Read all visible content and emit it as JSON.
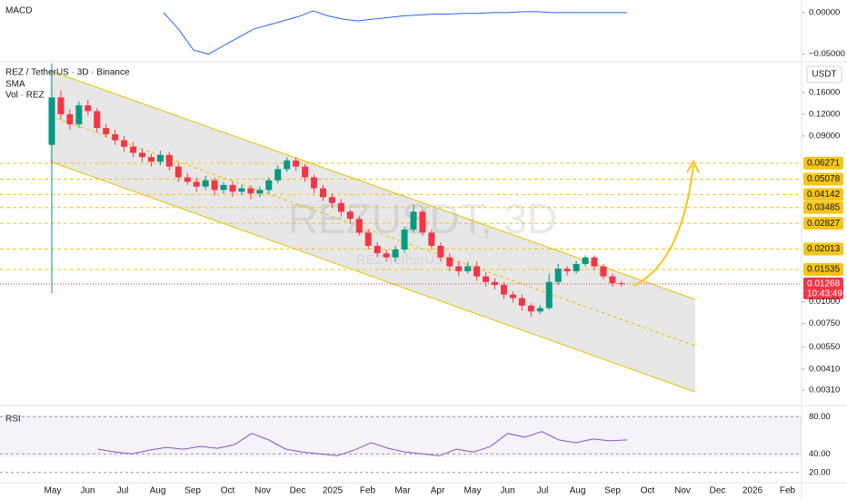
{
  "header": {
    "symbol": "REZ / TetherUS · 3D · Binance",
    "sma": "SMA",
    "volume": "Vol · REZ",
    "currency": "USDT",
    "watermark": "REZUSDT, 3D",
    "watermark_sub": "REZ TetherUS"
  },
  "chart_data": [
    {
      "type": "candlestick",
      "name": "REZ / TetherUS",
      "log_scale": true,
      "ylim": [
        0.00256,
        0.235
      ],
      "yticks": [
        {
          "value": 0.16,
          "label": "0.16000"
        },
        {
          "value": 0.12,
          "label": "0.12000"
        },
        {
          "value": 0.09,
          "label": "0.09000"
        },
        {
          "value": 0.01,
          "label": "0.01000"
        },
        {
          "value": 0.0075,
          "label": "0.00750"
        },
        {
          "value": 0.0055,
          "label": "0.00550"
        },
        {
          "value": 0.0041,
          "label": "0.00410"
        },
        {
          "value": 0.0031,
          "label": "0.00310"
        }
      ],
      "levels": [
        0.06271,
        0.05078,
        0.04142,
        0.03485,
        0.02827,
        0.02013,
        0.01535
      ],
      "level_color": "#f5c518",
      "last_price": 0.01268,
      "countdown": "10:43:49",
      "up_color": "#089981",
      "down_color": "#f23645",
      "x_labels": [
        "May",
        "Jun",
        "Jul",
        "Aug",
        "Sep",
        "Oct",
        "Nov",
        "Dec",
        "2025",
        "Feb",
        "Mar",
        "Apr",
        "May",
        "Jun",
        "Jul",
        "Aug",
        "Sep",
        "Oct",
        "Nov",
        "Dec",
        "2026",
        "Feb"
      ],
      "open": [
        0.08,
        0.15,
        0.12,
        0.105,
        0.135,
        0.125,
        0.1,
        0.092,
        0.085,
        0.078,
        0.072,
        0.068,
        0.064,
        0.07,
        0.06,
        0.052,
        0.049,
        0.046,
        0.05,
        0.044,
        0.047,
        0.043,
        0.045,
        0.042,
        0.044,
        0.05,
        0.058,
        0.065,
        0.06,
        0.052,
        0.045,
        0.04,
        0.037,
        0.033,
        0.03,
        0.025,
        0.021,
        0.019,
        0.018,
        0.02,
        0.026,
        0.033,
        0.025,
        0.021,
        0.018,
        0.016,
        0.015,
        0.016,
        0.014,
        0.013,
        0.0125,
        0.011,
        0.0105,
        0.0095,
        0.0088,
        0.0092,
        0.013,
        0.0155,
        0.015,
        0.0165,
        0.018,
        0.016,
        0.014,
        0.0128
      ],
      "high": [
        0.235,
        0.165,
        0.128,
        0.142,
        0.145,
        0.13,
        0.105,
        0.098,
        0.09,
        0.083,
        0.076,
        0.071,
        0.074,
        0.073,
        0.063,
        0.055,
        0.052,
        0.053,
        0.052,
        0.049,
        0.049,
        0.047,
        0.047,
        0.046,
        0.052,
        0.061,
        0.068,
        0.068,
        0.062,
        0.054,
        0.047,
        0.042,
        0.039,
        0.034,
        0.031,
        0.026,
        0.022,
        0.02,
        0.021,
        0.027,
        0.036,
        0.034,
        0.026,
        0.022,
        0.019,
        0.017,
        0.017,
        0.017,
        0.0148,
        0.0137,
        0.013,
        0.0115,
        0.011,
        0.0098,
        0.0096,
        0.0145,
        0.0165,
        0.016,
        0.0172,
        0.0185,
        0.0185,
        0.0165,
        0.0145,
        0.0132
      ],
      "low": [
        0.0112,
        0.112,
        0.098,
        0.1,
        0.118,
        0.094,
        0.088,
        0.08,
        0.073,
        0.068,
        0.064,
        0.06,
        0.061,
        0.057,
        0.049,
        0.047,
        0.043,
        0.044,
        0.041,
        0.042,
        0.04,
        0.041,
        0.039,
        0.04,
        0.042,
        0.048,
        0.056,
        0.057,
        0.049,
        0.042,
        0.038,
        0.035,
        0.031,
        0.028,
        0.024,
        0.02,
        0.018,
        0.017,
        0.017,
        0.019,
        0.025,
        0.024,
        0.02,
        0.017,
        0.015,
        0.014,
        0.0145,
        0.0132,
        0.0122,
        0.0118,
        0.0104,
        0.0099,
        0.0089,
        0.0082,
        0.0085,
        0.009,
        0.0125,
        0.0142,
        0.0145,
        0.016,
        0.0152,
        0.0135,
        0.0122,
        0.0122
      ],
      "close": [
        0.15,
        0.12,
        0.105,
        0.135,
        0.125,
        0.1,
        0.092,
        0.085,
        0.078,
        0.072,
        0.068,
        0.064,
        0.07,
        0.06,
        0.052,
        0.049,
        0.046,
        0.05,
        0.044,
        0.047,
        0.043,
        0.045,
        0.042,
        0.044,
        0.05,
        0.058,
        0.065,
        0.06,
        0.052,
        0.045,
        0.04,
        0.037,
        0.033,
        0.03,
        0.025,
        0.021,
        0.019,
        0.018,
        0.02,
        0.026,
        0.033,
        0.025,
        0.021,
        0.018,
        0.016,
        0.015,
        0.016,
        0.014,
        0.013,
        0.0125,
        0.011,
        0.0105,
        0.0095,
        0.0088,
        0.0092,
        0.013,
        0.0155,
        0.015,
        0.0165,
        0.018,
        0.016,
        0.014,
        0.0128,
        0.0127
      ]
    },
    {
      "type": "line",
      "title": "MACD",
      "color": "#2962ff",
      "ylim": [
        -0.058,
        0.014
      ],
      "yticks": [
        {
          "value": 0,
          "label": "0.00000"
        },
        {
          "value": -0.05,
          "label": "−0.05000"
        }
      ],
      "values": [
        0,
        -0.02,
        -0.045,
        -0.05,
        -0.04,
        -0.03,
        -0.02,
        -0.015,
        -0.01,
        -0.005,
        0.002,
        -0.004,
        -0.008,
        -0.01,
        -0.008,
        -0.006,
        -0.004,
        -0.003,
        -0.002,
        -0.002,
        -0.001,
        -0.001,
        0,
        0,
        0.001,
        0.001,
        0,
        0,
        0,
        0,
        0,
        0
      ]
    },
    {
      "type": "line",
      "title": "RSI",
      "color": "#7e57c2",
      "ylim": [
        10,
        90
      ],
      "yticks": [
        {
          "value": 80,
          "label": "80.00"
        },
        {
          "value": 40,
          "label": "40.00"
        },
        {
          "value": 20,
          "label": "20.00"
        }
      ],
      "values": [
        45,
        42,
        40,
        44,
        47,
        45,
        48,
        46,
        50,
        62,
        55,
        45,
        42,
        40,
        38,
        44,
        52,
        46,
        42,
        40,
        38,
        45,
        42,
        48,
        62,
        58,
        64,
        55,
        52,
        56,
        54,
        55
      ]
    }
  ]
}
